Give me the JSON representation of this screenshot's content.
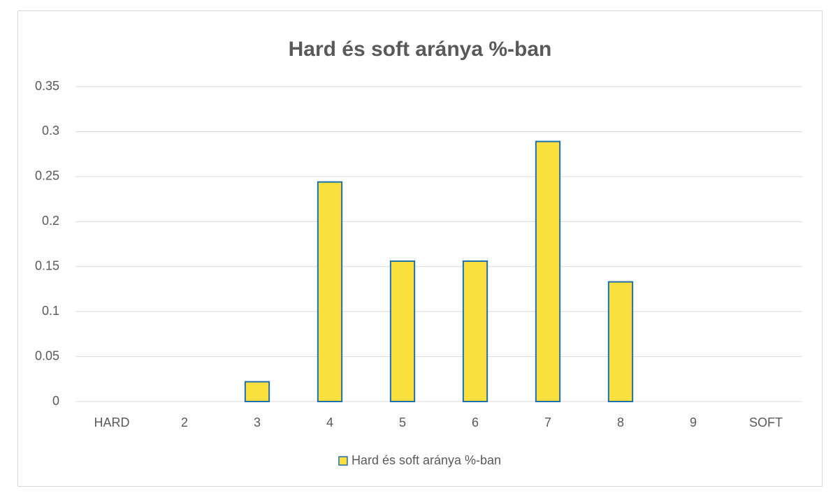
{
  "chart_data": {
    "type": "bar",
    "title": "Hard és soft aránya %-ban",
    "categories": [
      "HARD",
      "2",
      "3",
      "4",
      "5",
      "6",
      "7",
      "8",
      "9",
      "SOFT"
    ],
    "series": [
      {
        "name": "Hard és soft aránya %-ban",
        "color": "#F9E03F",
        "values": [
          0,
          0,
          0.022,
          0.244,
          0.156,
          0.156,
          0.289,
          0.133,
          0,
          0
        ]
      }
    ],
    "ylim": [
      0,
      0.35
    ],
    "yticks": [
      0,
      0.05,
      0.1,
      0.15,
      0.2,
      0.25,
      0.3,
      0.35
    ],
    "grid": true,
    "legend": "bottom"
  }
}
